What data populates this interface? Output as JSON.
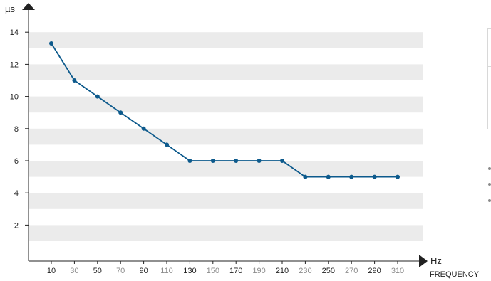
{
  "chart_data": {
    "type": "line",
    "x_axis": {
      "unit": "Hz",
      "label": "FREQUENCY"
    },
    "y_axis": {
      "unit": "µs",
      "ticks": [
        2,
        4,
        6,
        8,
        10,
        12,
        14
      ],
      "ylim": [
        0,
        14
      ]
    },
    "categories": [
      "10",
      "30",
      "50",
      "70",
      "90",
      "110",
      "130",
      "150",
      "170",
      "190",
      "210",
      "230",
      "250",
      "270",
      "290",
      "310"
    ],
    "category_colors": [
      "#222222",
      "#8c8c8c",
      "#222222",
      "#8c8c8c",
      "#222222",
      "#8c8c8c",
      "#222222",
      "#8c8c8c",
      "#222222",
      "#8c8c8c",
      "#222222",
      "#8c8c8c",
      "#222222",
      "#8c8c8c",
      "#222222",
      "#8c8c8c"
    ],
    "series": [
      {
        "values": [
          13.3,
          11,
          10,
          9,
          8,
          7,
          6,
          6,
          6,
          6,
          6,
          5,
          5,
          5,
          5,
          5
        ]
      }
    ],
    "grid": "alternating horizontal bands",
    "legend": "none",
    "colors": {
      "line": "#0d5a8c",
      "band": "#ebebeb",
      "axis": "#222222"
    }
  }
}
